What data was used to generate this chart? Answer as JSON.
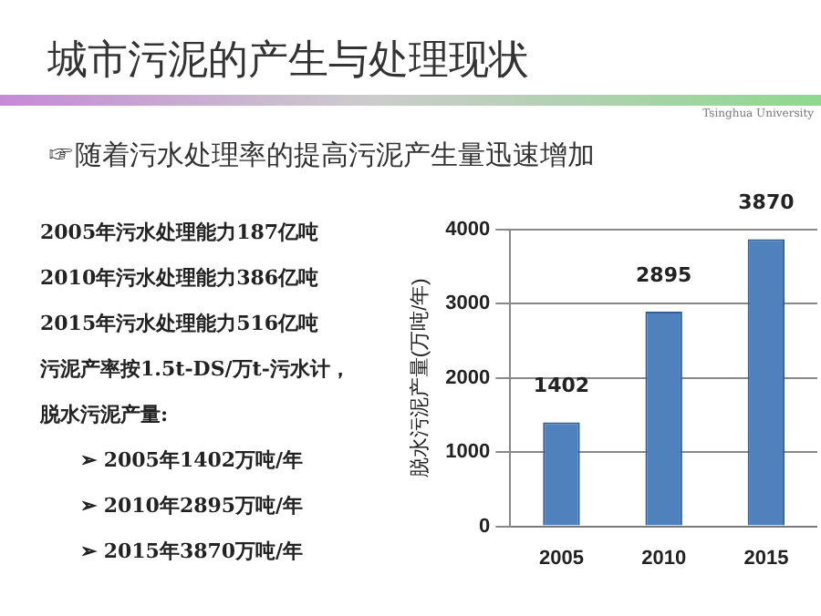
{
  "chart_data": {
    "type": "bar",
    "title": "城市污泥的产生与处理现状",
    "subtitle": "☞随着污水处理率的提高污泥产生量迅速增加",
    "annotations": [
      "Tsinghua University",
      "2005年污水处理能力187亿吨",
      "2010年污水处理能力386亿吨",
      "2015年污水处理能力516亿吨",
      "污泥产率按1.5t-DS/万t-污水计，",
      "脱水污泥产量:",
      "➢ 2005年1402万吨/年",
      "➢ 2010年2895万吨/年",
      "➢ 2015年3870万吨/年"
    ],
    "categories": [
      "2005",
      "2010",
      "2015"
    ],
    "values": [
      1402,
      2895,
      3870
    ],
    "color": "#4f81bd",
    "ylabel": "脱水污泥产量(万吨/年)",
    "ylim": [
      0,
      4000
    ],
    "yticks": [
      0,
      1000,
      2000,
      3000,
      4000
    ],
    "grid": "y",
    "data_labels": true,
    "legend": false
  }
}
